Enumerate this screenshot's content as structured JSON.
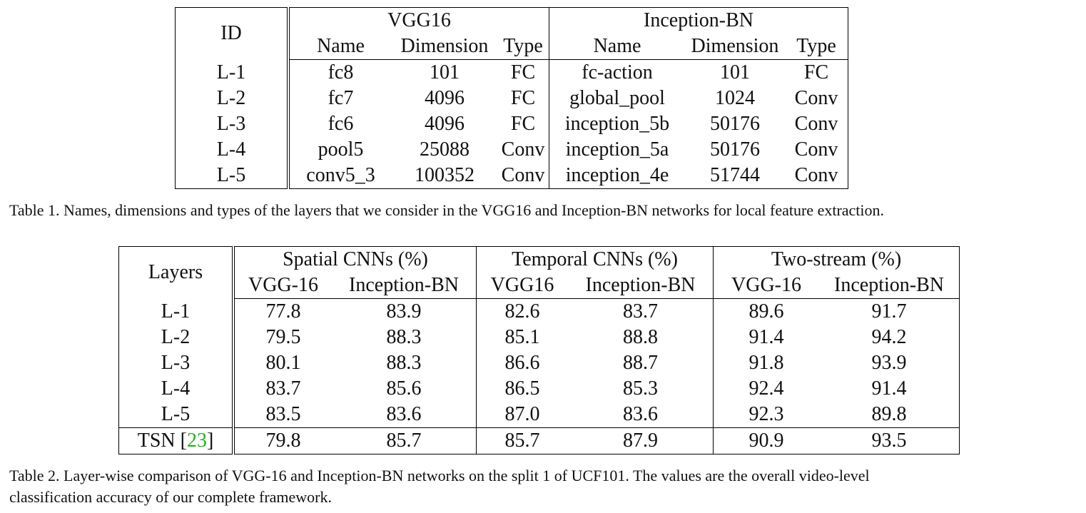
{
  "table1": {
    "id_header": "ID",
    "group1": "VGG16",
    "group2": "Inception-BN",
    "sub_headers": [
      "Name",
      "Dimension",
      "Type",
      "Name",
      "Dimension",
      "Type"
    ],
    "rows": [
      [
        "L-1",
        "fc8",
        "101",
        "FC",
        "fc-action",
        "101",
        "FC"
      ],
      [
        "L-2",
        "fc7",
        "4096",
        "FC",
        "global_pool",
        "1024",
        "Conv"
      ],
      [
        "L-3",
        "fc6",
        "4096",
        "FC",
        "inception_5b",
        "50176",
        "Conv"
      ],
      [
        "L-4",
        "pool5",
        "25088",
        "Conv",
        "inception_5a",
        "50176",
        "Conv"
      ],
      [
        "L-5",
        "conv5_3",
        "100352",
        "Conv",
        "inception_4e",
        "51744",
        "Conv"
      ]
    ],
    "caption": "Table 1. Names, dimensions and types of the layers that we consider in the VGG16 and Inception-BN networks for local feature extraction."
  },
  "table2": {
    "layers_header": "Layers",
    "groups": [
      "Spatial CNNs (%)",
      "Temporal CNNs (%)",
      "Two-stream (%)"
    ],
    "sub_headers": [
      "VGG-16",
      "Inception-BN",
      "VGG16",
      "Inception-BN",
      "VGG-16",
      "Inception-BN"
    ],
    "rows": [
      [
        "L-1",
        "77.8",
        "83.9",
        "82.6",
        "83.7",
        "89.6",
        "91.7"
      ],
      [
        "L-2",
        "79.5",
        "88.3",
        "85.1",
        "88.8",
        "91.4",
        "94.2"
      ],
      [
        "L-3",
        "80.1",
        "88.3",
        "86.6",
        "88.7",
        "91.8",
        "93.9"
      ],
      [
        "L-4",
        "83.7",
        "85.6",
        "86.5",
        "85.3",
        "92.4",
        "91.4"
      ],
      [
        "L-5",
        "83.5",
        "83.6",
        "87.0",
        "83.6",
        "92.3",
        "89.8"
      ]
    ],
    "tsn_row": {
      "label": "TSN [",
      "cite": "23",
      "label_end": "]",
      "values": [
        "79.8",
        "85.7",
        "85.7",
        "87.9",
        "90.9",
        "93.5"
      ]
    },
    "caption_line1": "Table 2. Layer-wise comparison of VGG-16 and Inception-BN networks on the split 1 of UCF101. The values are the overall video-level",
    "caption_line2": "classification accuracy of our complete framework.",
    "cite_color": "#1db31d"
  }
}
